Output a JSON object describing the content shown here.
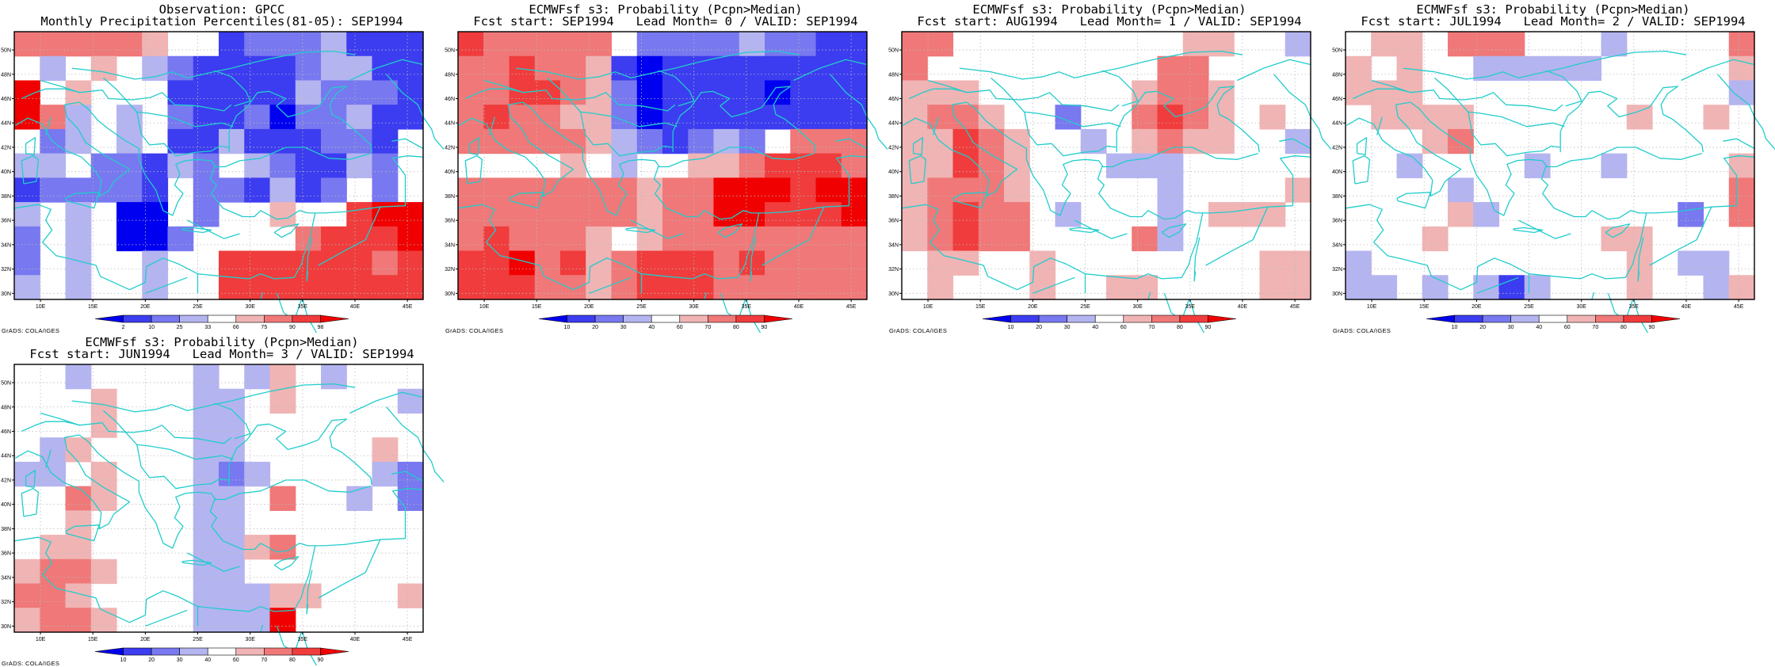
{
  "figure_caption": "",
  "panels": [
    {
      "id": "obs",
      "title_line1": "Observation: GPCC",
      "title_line2": "Monthly Precipitation Percentiles(81-05): SEP1994",
      "credit": "GrADS: COLA/IGES",
      "palette": "obs",
      "colorbar_labels": [
        "2",
        "10",
        "25",
        "33",
        "66",
        "75",
        "90",
        "98"
      ]
    },
    {
      "id": "lead0",
      "title_line1": "ECMWFsf s3: Probability (Pcpn>Median)",
      "title_line2": "Fcst start: SEP1994   Lead Month= 0 / VALID: SEP1994",
      "credit": "GrADS: COLA/IGES",
      "palette": "prob",
      "colorbar_labels": [
        "10",
        "20",
        "30",
        "40",
        "60",
        "70",
        "80",
        "90"
      ]
    },
    {
      "id": "lead1",
      "title_line1": "ECMWFsf s3: Probability (Pcpn>Median)",
      "title_line2": "Fcst start: AUG1994   Lead Month= 1 / VALID: SEP1994",
      "credit": "GrADS: COLA/IGES",
      "palette": "prob",
      "colorbar_labels": [
        "10",
        "20",
        "30",
        "40",
        "60",
        "70",
        "80",
        "90"
      ]
    },
    {
      "id": "lead2",
      "title_line1": "ECMWFsf s3: Probability (Pcpn>Median)",
      "title_line2": "Fcst start: JUL1994   Lead Month= 2 / VALID: SEP1994",
      "credit": "GrADS: COLA/IGES",
      "palette": "prob",
      "colorbar_labels": [
        "10",
        "20",
        "30",
        "40",
        "60",
        "70",
        "80",
        "90"
      ]
    },
    {
      "id": "lead3",
      "title_line1": "ECMWFsf s3: Probability (Pcpn>Median)",
      "title_line2": "Fcst start: JUN1994   Lead Month= 3 / VALID: SEP1994",
      "credit": "GrADS: COLA/IGES",
      "palette": "prob",
      "colorbar_labels": [
        "10",
        "20",
        "30",
        "40",
        "60",
        "70",
        "80",
        "90"
      ]
    }
  ],
  "map_axes": {
    "lon_range_deg": [
      7.5,
      46.5
    ],
    "lat_range_deg": [
      29.5,
      51.5
    ],
    "lon_tick_labels": [
      "10E",
      "15E",
      "20E",
      "25E",
      "30E",
      "35E",
      "40E",
      "45E"
    ],
    "lon_tick_values": [
      10,
      15,
      20,
      25,
      30,
      35,
      40,
      45
    ],
    "lat_tick_labels": [
      "30N",
      "32N",
      "34N",
      "36N",
      "38N",
      "40N",
      "42N",
      "44N",
      "46N",
      "48N",
      "50N"
    ],
    "lat_tick_values": [
      30,
      32,
      34,
      36,
      38,
      40,
      42,
      44,
      46,
      48,
      50
    ],
    "grid_style": "dotted",
    "coastline_color": "#22cccc"
  },
  "colors": {
    "obs": [
      "#0000f0",
      "#3c3cf0",
      "#7878f0",
      "#b4b4f0",
      "#ffffff",
      "#f0b4b4",
      "#f07878",
      "#f03c3c",
      "#f00000"
    ],
    "prob": [
      "#0000f0",
      "#3c3cf0",
      "#7878f0",
      "#b4b4f0",
      "#ffffff",
      "#f0b4b4",
      "#f07878",
      "#f03c3c",
      "#f00000"
    ]
  },
  "chart_data": [
    {
      "type": "heatmap",
      "title": "Observation: GPCC — Monthly Precipitation Percentiles(81-05): SEP1994",
      "rows_lat_N_to_S": [
        50,
        48,
        46,
        44,
        42,
        40,
        38,
        36,
        34,
        32,
        30
      ],
      "cols_lon_W_to_E": [
        8.75,
        11.25,
        13.75,
        16.25,
        18.75,
        21.25,
        23.75,
        26.25,
        28.75,
        31.25,
        33.75,
        36.25,
        38.75,
        41.25,
        43.75,
        46.25
      ],
      "category_index_grid": [
        [
          6,
          6,
          6,
          6,
          6,
          5,
          4,
          4,
          1,
          2,
          2,
          2,
          3,
          1,
          1,
          1
        ],
        [
          4,
          3,
          4,
          5,
          4,
          3,
          2,
          1,
          1,
          1,
          1,
          2,
          3,
          3,
          1,
          1
        ],
        [
          8,
          4,
          5,
          4,
          4,
          4,
          1,
          1,
          1,
          1,
          1,
          3,
          2,
          2,
          2,
          1
        ],
        [
          8,
          6,
          3,
          4,
          3,
          4,
          2,
          1,
          1,
          2,
          0,
          2,
          2,
          3,
          1,
          1
        ],
        [
          4,
          2,
          3,
          4,
          3,
          4,
          1,
          1,
          3,
          1,
          1,
          1,
          2,
          2,
          1,
          4
        ],
        [
          3,
          3,
          4,
          2,
          2,
          1,
          3,
          2,
          4,
          3,
          2,
          1,
          1,
          3,
          2,
          4
        ],
        [
          1,
          2,
          2,
          2,
          2,
          1,
          4,
          2,
          2,
          1,
          3,
          1,
          2,
          4,
          2,
          4
        ],
        [
          3,
          4,
          3,
          4,
          0,
          0,
          4,
          2,
          4,
          4,
          5,
          4,
          4,
          7,
          8,
          8
        ],
        [
          2,
          4,
          3,
          4,
          0,
          0,
          2,
          4,
          4,
          4,
          4,
          6,
          7,
          7,
          7,
          8
        ],
        [
          2,
          4,
          3,
          4,
          4,
          3,
          4,
          4,
          7,
          7,
          7,
          7,
          7,
          7,
          6,
          7
        ],
        [
          3,
          4,
          3,
          4,
          4,
          3,
          4,
          4,
          7,
          7,
          7,
          7,
          7,
          7,
          7,
          7
        ]
      ]
    },
    {
      "type": "heatmap",
      "title": "ECMWFsf s3: Probability (Pcpn>Median) — Fcst start: SEP1994 Lead Month= 0 / VALID: SEP1994",
      "rows_lat_N_to_S": [
        50,
        48,
        46,
        44,
        42,
        40,
        38,
        36,
        34,
        32,
        30
      ],
      "cols_lon_W_to_E": [
        8.75,
        11.25,
        13.75,
        16.25,
        18.75,
        21.25,
        23.75,
        26.25,
        28.75,
        31.25,
        33.75,
        36.25,
        38.75,
        41.25,
        43.75,
        46.25
      ],
      "category_index_grid": [
        [
          7,
          6,
          6,
          6,
          6,
          6,
          4,
          2,
          2,
          2,
          2,
          3,
          2,
          2,
          1,
          1
        ],
        [
          6,
          6,
          7,
          6,
          6,
          5,
          1,
          0,
          1,
          1,
          1,
          1,
          1,
          1,
          1,
          1
        ],
        [
          6,
          6,
          7,
          7,
          6,
          5,
          2,
          0,
          1,
          1,
          1,
          1,
          0,
          1,
          1,
          1
        ],
        [
          6,
          7,
          6,
          6,
          5,
          5,
          2,
          0,
          1,
          1,
          1,
          1,
          1,
          1,
          1,
          1
        ],
        [
          6,
          6,
          6,
          6,
          6,
          5,
          3,
          2,
          1,
          2,
          3,
          2,
          4,
          6,
          6,
          6
        ],
        [
          4,
          4,
          4,
          4,
          5,
          4,
          3,
          4,
          4,
          5,
          5,
          6,
          7,
          7,
          7,
          6
        ],
        [
          6,
          6,
          6,
          6,
          6,
          6,
          6,
          5,
          6,
          6,
          8,
          8,
          8,
          7,
          8,
          8
        ],
        [
          6,
          6,
          6,
          6,
          6,
          6,
          6,
          5,
          6,
          6,
          8,
          8,
          7,
          7,
          7,
          8
        ],
        [
          6,
          7,
          6,
          6,
          6,
          5,
          4,
          5,
          6,
          6,
          6,
          6,
          6,
          6,
          6,
          6
        ],
        [
          7,
          7,
          8,
          6,
          7,
          5,
          6,
          7,
          7,
          7,
          6,
          7,
          6,
          6,
          6,
          6
        ],
        [
          7,
          7,
          7,
          6,
          6,
          5,
          6,
          7,
          7,
          7,
          6,
          6,
          6,
          6,
          6,
          6
        ]
      ]
    },
    {
      "type": "heatmap",
      "title": "ECMWFsf s3: Probability (Pcpn>Median) — Fcst start: AUG1994 Lead Month= 1 / VALID: SEP1994",
      "rows_lat_N_to_S": [
        50,
        48,
        46,
        44,
        42,
        40,
        38,
        36,
        34,
        32,
        30
      ],
      "cols_lon_W_to_E": [
        8.75,
        11.25,
        13.75,
        16.25,
        18.75,
        21.25,
        23.75,
        26.25,
        28.75,
        31.25,
        33.75,
        36.25,
        38.75,
        41.25,
        43.75,
        46.25
      ],
      "category_index_grid": [
        [
          6,
          6,
          4,
          4,
          4,
          4,
          4,
          4,
          4,
          4,
          4,
          5,
          5,
          4,
          4,
          3
        ],
        [
          6,
          4,
          4,
          4,
          4,
          4,
          4,
          4,
          4,
          4,
          6,
          6,
          4,
          4,
          4,
          4
        ],
        [
          5,
          5,
          5,
          4,
          4,
          4,
          4,
          4,
          4,
          5,
          6,
          6,
          5,
          4,
          4,
          4
        ],
        [
          5,
          6,
          6,
          5,
          4,
          4,
          2,
          4,
          4,
          6,
          7,
          6,
          5,
          4,
          5,
          4
        ],
        [
          5,
          5,
          7,
          6,
          5,
          4,
          4,
          3,
          4,
          5,
          6,
          5,
          5,
          4,
          4,
          3
        ],
        [
          5,
          5,
          7,
          6,
          5,
          4,
          4,
          4,
          3,
          3,
          3,
          4,
          4,
          4,
          4,
          4
        ],
        [
          5,
          6,
          6,
          6,
          5,
          4,
          4,
          4,
          4,
          4,
          3,
          4,
          4,
          4,
          4,
          5
        ],
        [
          5,
          6,
          7,
          6,
          6,
          4,
          3,
          4,
          4,
          4,
          3,
          4,
          5,
          5,
          5,
          4
        ],
        [
          5,
          6,
          7,
          6,
          6,
          4,
          4,
          4,
          4,
          6,
          3,
          4,
          4,
          4,
          4,
          4
        ],
        [
          4,
          5,
          5,
          4,
          4,
          5,
          4,
          4,
          4,
          4,
          4,
          4,
          4,
          4,
          5,
          5
        ],
        [
          4,
          5,
          4,
          4,
          4,
          5,
          4,
          4,
          5,
          5,
          4,
          4,
          4,
          4,
          5,
          5
        ]
      ]
    },
    {
      "type": "heatmap",
      "title": "ECMWFsf s3: Probability (Pcpn>Median) — Fcst start: JUL1994 Lead Month= 2 / VALID: SEP1994",
      "rows_lat_N_to_S": [
        50,
        48,
        46,
        44,
        42,
        40,
        38,
        36,
        34,
        32,
        30
      ],
      "cols_lon_W_to_E": [
        8.75,
        11.25,
        13.75,
        16.25,
        18.75,
        21.25,
        23.75,
        26.25,
        28.75,
        31.25,
        33.75,
        36.25,
        38.75,
        41.25,
        43.75,
        46.25
      ],
      "category_index_grid": [
        [
          4,
          5,
          5,
          4,
          6,
          6,
          6,
          4,
          4,
          4,
          3,
          4,
          4,
          4,
          4,
          6
        ],
        [
          5,
          4,
          5,
          4,
          4,
          3,
          3,
          3,
          3,
          3,
          4,
          4,
          4,
          4,
          4,
          5
        ],
        [
          5,
          5,
          5,
          4,
          4,
          4,
          4,
          4,
          4,
          4,
          4,
          4,
          4,
          4,
          4,
          3
        ],
        [
          4,
          5,
          5,
          5,
          5,
          4,
          4,
          4,
          4,
          4,
          4,
          5,
          4,
          4,
          5,
          4
        ],
        [
          4,
          4,
          4,
          5,
          6,
          4,
          4,
          4,
          4,
          4,
          4,
          4,
          4,
          4,
          4,
          4
        ],
        [
          4,
          4,
          3,
          4,
          4,
          4,
          4,
          3,
          4,
          4,
          3,
          4,
          4,
          4,
          4,
          5
        ],
        [
          4,
          4,
          4,
          4,
          3,
          4,
          4,
          4,
          4,
          4,
          4,
          4,
          4,
          4,
          4,
          6
        ],
        [
          4,
          4,
          4,
          4,
          5,
          3,
          4,
          4,
          4,
          4,
          4,
          4,
          4,
          2,
          4,
          6
        ],
        [
          4,
          4,
          4,
          5,
          4,
          4,
          4,
          4,
          4,
          4,
          5,
          5,
          4,
          4,
          4,
          4
        ],
        [
          3,
          4,
          4,
          4,
          4,
          4,
          4,
          4,
          4,
          4,
          4,
          5,
          4,
          3,
          3,
          4
        ],
        [
          3,
          3,
          4,
          3,
          4,
          3,
          1,
          3,
          4,
          4,
          4,
          5,
          4,
          4,
          3,
          5
        ]
      ]
    },
    {
      "type": "heatmap",
      "title": "ECMWFsf s3: Probability (Pcpn>Median) — Fcst start: JUN1994 Lead Month= 3 / VALID: SEP1994",
      "rows_lat_N_to_S": [
        50,
        48,
        46,
        44,
        42,
        40,
        38,
        36,
        34,
        32,
        30
      ],
      "cols_lon_W_to_E": [
        8.75,
        11.25,
        13.75,
        16.25,
        18.75,
        21.25,
        23.75,
        26.25,
        28.75,
        31.25,
        33.75,
        36.25,
        38.75,
        41.25,
        43.75,
        46.25
      ],
      "category_index_grid": [
        [
          4,
          4,
          3,
          4,
          4,
          4,
          4,
          3,
          4,
          3,
          5,
          4,
          3,
          4,
          4,
          4
        ],
        [
          4,
          4,
          4,
          5,
          4,
          4,
          4,
          3,
          3,
          4,
          5,
          4,
          4,
          4,
          4,
          3
        ],
        [
          4,
          4,
          4,
          5,
          4,
          4,
          4,
          3,
          3,
          4,
          4,
          4,
          4,
          4,
          4,
          4
        ],
        [
          4,
          3,
          5,
          4,
          4,
          4,
          4,
          3,
          3,
          4,
          4,
          4,
          4,
          4,
          5,
          4
        ],
        [
          3,
          3,
          4,
          5,
          4,
          4,
          4,
          3,
          2,
          3,
          4,
          4,
          4,
          4,
          3,
          2
        ],
        [
          4,
          4,
          6,
          5,
          4,
          4,
          4,
          3,
          3,
          4,
          6,
          4,
          4,
          3,
          4,
          2
        ],
        [
          4,
          4,
          5,
          4,
          4,
          4,
          4,
          3,
          3,
          4,
          4,
          4,
          4,
          4,
          4,
          4
        ],
        [
          4,
          5,
          5,
          4,
          4,
          4,
          4,
          3,
          3,
          5,
          6,
          4,
          4,
          4,
          4,
          4
        ],
        [
          5,
          6,
          6,
          5,
          4,
          4,
          4,
          3,
          3,
          4,
          4,
          4,
          4,
          4,
          4,
          4
        ],
        [
          6,
          6,
          5,
          4,
          4,
          4,
          4,
          3,
          3,
          3,
          5,
          5,
          4,
          4,
          4,
          5
        ],
        [
          5,
          6,
          6,
          5,
          4,
          4,
          4,
          3,
          3,
          3,
          8,
          4,
          4,
          4,
          4,
          4
        ]
      ]
    }
  ]
}
